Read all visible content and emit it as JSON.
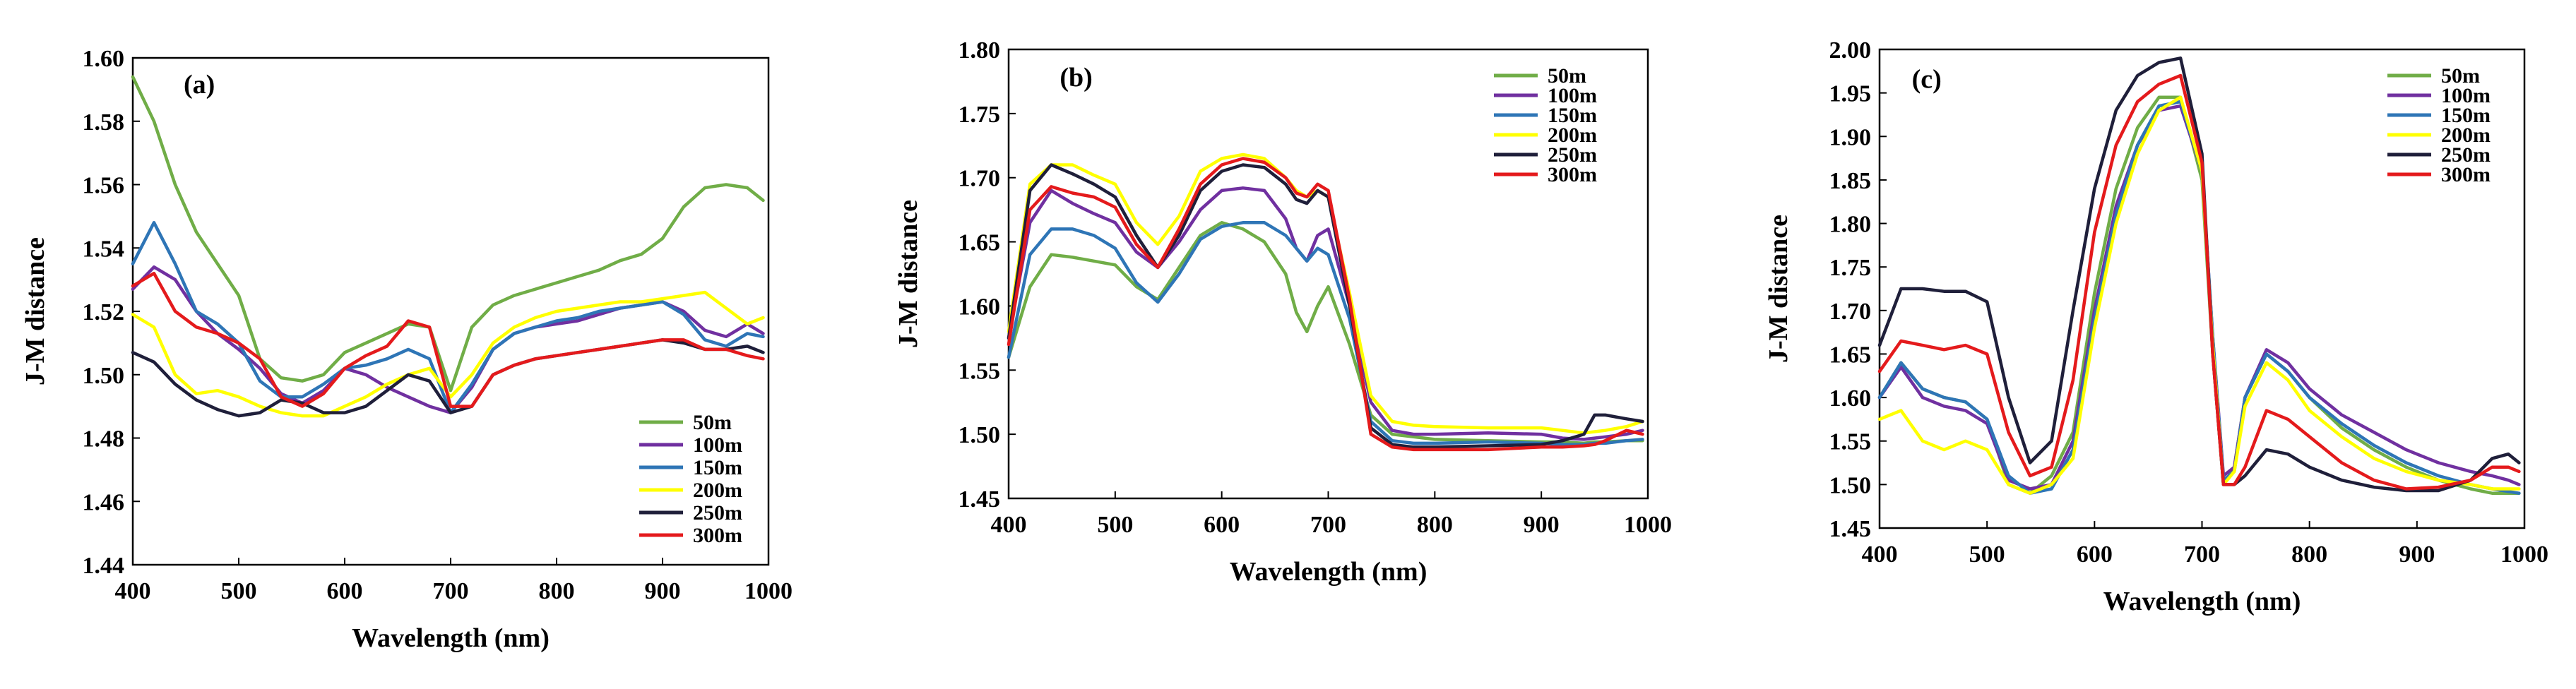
{
  "chart_data": [
    {
      "type": "line",
      "panel_label": "(a)",
      "xlabel": "Wavelength (nm)",
      "ylabel": "J-M distance",
      "xlim": [
        400,
        1000
      ],
      "ylim": [
        1.44,
        1.6
      ],
      "xticks": [
        400,
        500,
        600,
        700,
        800,
        900,
        1000
      ],
      "yticks": [
        1.44,
        1.46,
        1.48,
        1.5,
        1.52,
        1.54,
        1.56,
        1.58,
        1.6
      ],
      "ytick_labels": [
        "1.44",
        "1.46",
        "1.48",
        "1.50",
        "1.52",
        "1.54",
        "1.56",
        "1.58",
        "1.60"
      ],
      "legend_position": "bottom-right",
      "grid": false,
      "x": [
        400,
        420,
        440,
        460,
        480,
        500,
        520,
        540,
        560,
        580,
        600,
        620,
        640,
        660,
        680,
        700,
        720,
        740,
        760,
        780,
        800,
        820,
        840,
        860,
        880,
        900,
        920,
        940,
        960,
        980,
        995
      ],
      "series": [
        {
          "name": "50m",
          "color": "#70ad47",
          "values": [
            1.594,
            1.58,
            1.56,
            1.545,
            1.535,
            1.525,
            1.505,
            1.499,
            1.498,
            1.5,
            1.507,
            1.51,
            1.513,
            1.516,
            1.515,
            1.495,
            1.515,
            1.522,
            1.525,
            1.527,
            1.529,
            1.531,
            1.533,
            1.536,
            1.538,
            1.543,
            1.553,
            1.559,
            1.56,
            1.559,
            1.555
          ]
        },
        {
          "name": "100m",
          "color": "#7030a0",
          "values": [
            1.527,
            1.534,
            1.53,
            1.52,
            1.513,
            1.508,
            1.502,
            1.494,
            1.491,
            1.495,
            1.502,
            1.5,
            1.496,
            1.493,
            1.49,
            1.488,
            1.496,
            1.508,
            1.513,
            1.515,
            1.516,
            1.517,
            1.519,
            1.521,
            1.522,
            1.523,
            1.52,
            1.514,
            1.512,
            1.516,
            1.513
          ]
        },
        {
          "name": "150m",
          "color": "#2e75b6",
          "values": [
            1.535,
            1.548,
            1.535,
            1.52,
            1.516,
            1.51,
            1.498,
            1.493,
            1.493,
            1.497,
            1.502,
            1.503,
            1.505,
            1.508,
            1.505,
            1.488,
            1.497,
            1.508,
            1.513,
            1.515,
            1.517,
            1.518,
            1.52,
            1.521,
            1.522,
            1.523,
            1.519,
            1.511,
            1.509,
            1.513,
            1.512
          ]
        },
        {
          "name": "200m",
          "color": "#ffff00",
          "values": [
            1.519,
            1.515,
            1.5,
            1.494,
            1.495,
            1.493,
            1.49,
            1.488,
            1.487,
            1.487,
            1.49,
            1.493,
            1.497,
            1.5,
            1.502,
            1.493,
            1.5,
            1.51,
            1.515,
            1.518,
            1.52,
            1.521,
            1.522,
            1.523,
            1.523,
            1.524,
            1.525,
            1.526,
            1.521,
            1.516,
            1.518
          ]
        },
        {
          "name": "250m",
          "color": "#1f1f3a",
          "values": [
            1.507,
            1.504,
            1.497,
            1.492,
            1.489,
            1.487,
            1.488,
            1.492,
            1.491,
            1.488,
            1.488,
            1.49,
            1.495,
            1.5,
            1.498,
            1.488,
            1.49,
            1.5,
            1.503,
            1.505,
            1.506,
            1.507,
            1.508,
            1.509,
            1.51,
            1.511,
            1.51,
            1.508,
            1.508,
            1.509,
            1.507
          ]
        },
        {
          "name": "300m",
          "color": "#e41a1c",
          "values": [
            1.528,
            1.532,
            1.52,
            1.515,
            1.513,
            1.51,
            1.505,
            1.493,
            1.49,
            1.494,
            1.502,
            1.506,
            1.509,
            1.517,
            1.515,
            1.49,
            1.49,
            1.5,
            1.503,
            1.505,
            1.506,
            1.507,
            1.508,
            1.509,
            1.51,
            1.511,
            1.511,
            1.508,
            1.508,
            1.506,
            1.505
          ]
        }
      ]
    },
    {
      "type": "line",
      "panel_label": "(b)",
      "xlabel": "Wavelength (nm)",
      "ylabel": "J-M distance",
      "xlim": [
        400,
        1000
      ],
      "ylim": [
        1.45,
        1.8
      ],
      "xticks": [
        400,
        500,
        600,
        700,
        800,
        900,
        1000
      ],
      "yticks": [
        1.45,
        1.5,
        1.55,
        1.6,
        1.65,
        1.7,
        1.75,
        1.8
      ],
      "ytick_labels": [
        "1.45",
        "1.50",
        "1.55",
        "1.60",
        "1.65",
        "1.70",
        "1.75",
        "1.80"
      ],
      "legend_position": "top-right",
      "grid": false,
      "x": [
        400,
        420,
        440,
        460,
        480,
        500,
        520,
        540,
        560,
        580,
        600,
        620,
        640,
        660,
        670,
        680,
        690,
        700,
        720,
        740,
        760,
        780,
        800,
        850,
        900,
        920,
        940,
        950,
        960,
        980,
        995
      ],
      "series": [
        {
          "name": "50m",
          "color": "#70ad47",
          "values": [
            1.56,
            1.615,
            1.64,
            1.638,
            1.635,
            1.632,
            1.615,
            1.605,
            1.63,
            1.655,
            1.665,
            1.66,
            1.65,
            1.625,
            1.595,
            1.58,
            1.6,
            1.615,
            1.57,
            1.515,
            1.5,
            1.498,
            1.496,
            1.495,
            1.494,
            1.494,
            1.493,
            1.494,
            1.494,
            1.495,
            1.495
          ]
        },
        {
          "name": "100m",
          "color": "#7030a0",
          "values": [
            1.575,
            1.665,
            1.69,
            1.68,
            1.672,
            1.665,
            1.642,
            1.63,
            1.65,
            1.675,
            1.69,
            1.692,
            1.69,
            1.668,
            1.645,
            1.635,
            1.655,
            1.66,
            1.6,
            1.525,
            1.503,
            1.5,
            1.5,
            1.501,
            1.5,
            1.497,
            1.496,
            1.497,
            1.498,
            1.5,
            1.503
          ]
        },
        {
          "name": "150m",
          "color": "#2e75b6",
          "values": [
            1.56,
            1.64,
            1.66,
            1.66,
            1.655,
            1.645,
            1.618,
            1.603,
            1.625,
            1.652,
            1.662,
            1.665,
            1.665,
            1.655,
            1.645,
            1.635,
            1.645,
            1.64,
            1.59,
            1.51,
            1.495,
            1.493,
            1.493,
            1.494,
            1.493,
            1.492,
            1.492,
            1.493,
            1.493,
            1.495,
            1.496
          ]
        },
        {
          "name": "200m",
          "color": "#ffff00",
          "values": [
            1.58,
            1.695,
            1.71,
            1.71,
            1.702,
            1.695,
            1.665,
            1.648,
            1.67,
            1.705,
            1.715,
            1.718,
            1.715,
            1.7,
            1.69,
            1.685,
            1.69,
            1.685,
            1.61,
            1.53,
            1.51,
            1.507,
            1.506,
            1.505,
            1.505,
            1.503,
            1.501,
            1.502,
            1.503,
            1.506,
            1.51
          ]
        },
        {
          "name": "250m",
          "color": "#1f1f3a",
          "values": [
            1.575,
            1.69,
            1.71,
            1.703,
            1.695,
            1.685,
            1.655,
            1.63,
            1.655,
            1.69,
            1.705,
            1.71,
            1.708,
            1.695,
            1.683,
            1.68,
            1.69,
            1.685,
            1.6,
            1.505,
            1.492,
            1.49,
            1.49,
            1.491,
            1.492,
            1.495,
            1.5,
            1.515,
            1.515,
            1.512,
            1.51
          ]
        },
        {
          "name": "300m",
          "color": "#e41a1c",
          "values": [
            1.57,
            1.675,
            1.693,
            1.688,
            1.685,
            1.677,
            1.648,
            1.63,
            1.66,
            1.695,
            1.71,
            1.715,
            1.712,
            1.7,
            1.688,
            1.685,
            1.695,
            1.69,
            1.605,
            1.5,
            1.49,
            1.488,
            1.488,
            1.488,
            1.49,
            1.49,
            1.491,
            1.492,
            1.495,
            1.503,
            1.5
          ]
        }
      ]
    },
    {
      "type": "line",
      "panel_label": "(c)",
      "xlabel": "Wavelength (nm)",
      "ylabel": "J-M distance",
      "xlim": [
        400,
        1000
      ],
      "ylim": [
        1.45,
        2.0
      ],
      "xticks": [
        400,
        500,
        600,
        700,
        800,
        900,
        1000
      ],
      "yticks": [
        1.45,
        1.5,
        1.55,
        1.6,
        1.65,
        1.7,
        1.75,
        1.8,
        1.85,
        1.9,
        1.95,
        2.0
      ],
      "ytick_labels": [
        "1.45",
        "1.50",
        "1.55",
        "1.60",
        "1.65",
        "1.70",
        "1.75",
        "1.80",
        "1.85",
        "1.90",
        "1.95",
        "2.00"
      ],
      "legend_position": "top-right",
      "grid": false,
      "x": [
        400,
        420,
        440,
        460,
        480,
        500,
        520,
        540,
        560,
        580,
        600,
        620,
        640,
        660,
        680,
        700,
        710,
        720,
        730,
        740,
        760,
        780,
        800,
        830,
        860,
        890,
        920,
        950,
        970,
        985,
        995
      ],
      "series": [
        {
          "name": "50m",
          "color": "#70ad47",
          "values": [
            1.6,
            1.64,
            1.61,
            1.6,
            1.595,
            1.575,
            1.5,
            1.49,
            1.51,
            1.56,
            1.72,
            1.84,
            1.91,
            1.945,
            1.945,
            1.85,
            1.65,
            1.5,
            1.52,
            1.6,
            1.65,
            1.63,
            1.6,
            1.565,
            1.54,
            1.52,
            1.505,
            1.495,
            1.49,
            1.49,
            1.49
          ]
        },
        {
          "name": "100m",
          "color": "#7030a0",
          "values": [
            1.6,
            1.635,
            1.6,
            1.59,
            1.585,
            1.57,
            1.505,
            1.495,
            1.5,
            1.55,
            1.7,
            1.82,
            1.89,
            1.93,
            1.935,
            1.86,
            1.67,
            1.51,
            1.52,
            1.6,
            1.655,
            1.64,
            1.61,
            1.58,
            1.56,
            1.54,
            1.525,
            1.515,
            1.51,
            1.505,
            1.5
          ]
        },
        {
          "name": "150m",
          "color": "#2e75b6",
          "values": [
            1.6,
            1.64,
            1.61,
            1.6,
            1.595,
            1.575,
            1.51,
            1.49,
            1.495,
            1.54,
            1.69,
            1.81,
            1.89,
            1.935,
            1.94,
            1.86,
            1.67,
            1.505,
            1.515,
            1.6,
            1.65,
            1.63,
            1.6,
            1.57,
            1.545,
            1.525,
            1.51,
            1.5,
            1.495,
            1.492,
            1.49
          ]
        },
        {
          "name": "200m",
          "color": "#ffff00",
          "values": [
            1.575,
            1.585,
            1.55,
            1.54,
            1.55,
            1.54,
            1.5,
            1.49,
            1.5,
            1.53,
            1.68,
            1.8,
            1.88,
            1.93,
            1.945,
            1.86,
            1.66,
            1.5,
            1.515,
            1.59,
            1.64,
            1.62,
            1.585,
            1.555,
            1.53,
            1.515,
            1.505,
            1.5,
            1.495,
            1.495,
            1.495
          ]
        },
        {
          "name": "250m",
          "color": "#1f1f3a",
          "values": [
            1.66,
            1.725,
            1.725,
            1.722,
            1.722,
            1.71,
            1.6,
            1.525,
            1.55,
            1.7,
            1.84,
            1.93,
            1.97,
            1.985,
            1.99,
            1.88,
            1.65,
            1.5,
            1.5,
            1.51,
            1.54,
            1.535,
            1.52,
            1.505,
            1.497,
            1.493,
            1.493,
            1.505,
            1.53,
            1.535,
            1.525
          ]
        },
        {
          "name": "300m",
          "color": "#e41a1c",
          "values": [
            1.63,
            1.665,
            1.66,
            1.655,
            1.66,
            1.65,
            1.56,
            1.51,
            1.52,
            1.62,
            1.79,
            1.89,
            1.94,
            1.96,
            1.97,
            1.87,
            1.65,
            1.5,
            1.5,
            1.52,
            1.585,
            1.575,
            1.555,
            1.525,
            1.505,
            1.495,
            1.497,
            1.505,
            1.52,
            1.52,
            1.515
          ]
        }
      ]
    }
  ]
}
